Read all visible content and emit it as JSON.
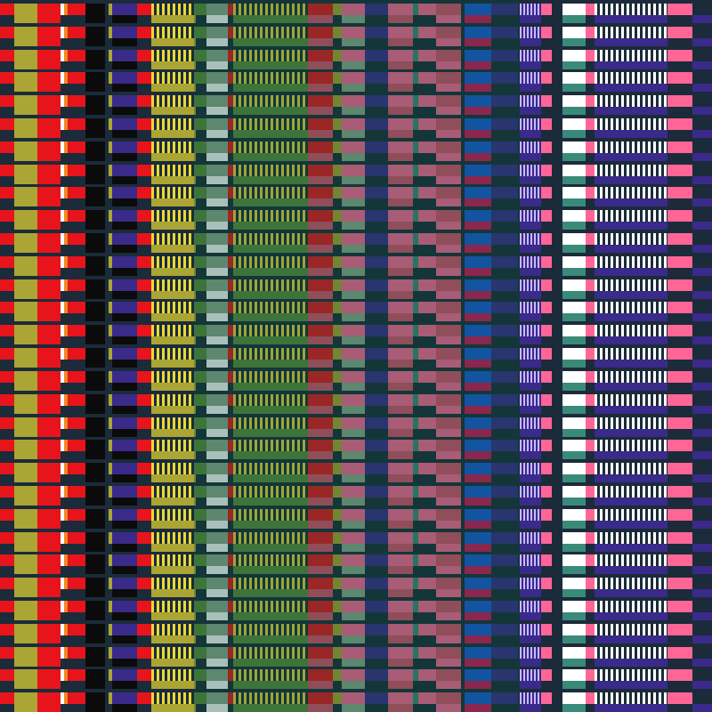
{
  "pattern": {
    "name": "",
    "row_count": 31,
    "palette": {
      "background": "#1b2b3a",
      "red": "#e8141c",
      "olive": "#aaa534",
      "white": "#ffffff",
      "orange": "#f08a24",
      "black": "#0b0b0b",
      "purple": "#3a2a8a",
      "yellow": "#e8d83a",
      "green": "#5a8a3a",
      "sage": "#8aa88a",
      "pink": "#ff6696",
      "rose": "#d8506a",
      "teal": "#3a8a7a",
      "blue": "#1a5ad8",
      "magenta": "#d0145a",
      "lavender": "#c8b8ff",
      "dark_teal_overlay": "#0a4a3a"
    }
  }
}
